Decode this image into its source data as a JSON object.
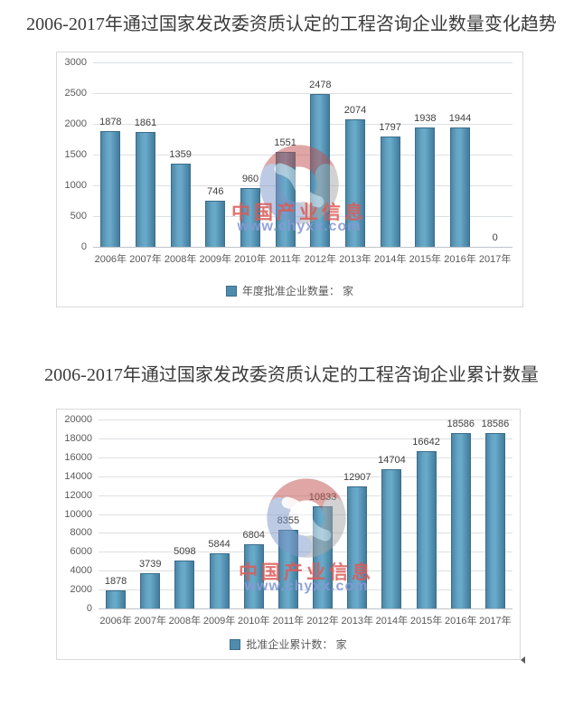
{
  "page": {
    "title1": "2006-2017年通过国家发改委资质认定的工程咨询企业数量变化趋势",
    "title2": "2006-2017年通过国家发改委资质认定的工程咨询企业累计数量"
  },
  "watermark": {
    "line1": "中国产业信息",
    "line2": "www.chyxx.com",
    "red_text_color": "#db5a56",
    "blue_text_color": "#8699d4"
  },
  "colors": {
    "bar_fill": "#5596b8",
    "bar_border": "#3a6d8d",
    "legend_square": "#4f8cab",
    "gridline": "#dcdfe2",
    "axis_text": "#595959",
    "title_text": "#3a3a3a",
    "chart_border": "#d9d9d9"
  },
  "chart_data": [
    {
      "type": "bar",
      "title": "2006-2017年通过国家发改委资质认定的工程咨询企业数量变化趋势",
      "categories": [
        "2006年",
        "2007年",
        "2008年",
        "2009年",
        "2010年",
        "2011年",
        "2012年",
        "2013年",
        "2014年",
        "2015年",
        "2016年",
        "2017年"
      ],
      "series": [
        {
          "name": "年度批准企业数量： 家",
          "values": [
            1878,
            1861,
            1359,
            746,
            960,
            1551,
            2478,
            2074,
            1797,
            1938,
            1944,
            0
          ]
        }
      ],
      "ylim": [
        0,
        3000
      ],
      "ytick_step": 500,
      "yticks": [
        0,
        500,
        1000,
        1500,
        2000,
        2500,
        3000
      ],
      "grid": true,
      "legend_position": "bottom",
      "data_labels": true
    },
    {
      "type": "bar",
      "title": "2006-2017年通过国家发改委资质认定的工程咨询企业累计数量",
      "categories": [
        "2006年",
        "2007年",
        "2008年",
        "2009年",
        "2010年",
        "2011年",
        "2012年",
        "2013年",
        "2014年",
        "2015年",
        "2016年",
        "2017年"
      ],
      "series": [
        {
          "name": "批准企业累计数： 家",
          "values": [
            1878,
            3739,
            5098,
            5844,
            6804,
            8355,
            10833,
            12907,
            14704,
            16642,
            18586,
            18586
          ]
        }
      ],
      "ylim": [
        0,
        20000
      ],
      "ytick_step": 2000,
      "yticks": [
        0,
        2000,
        4000,
        6000,
        8000,
        10000,
        12000,
        14000,
        16000,
        18000,
        20000
      ],
      "grid": true,
      "legend_position": "bottom",
      "data_labels": true
    }
  ]
}
